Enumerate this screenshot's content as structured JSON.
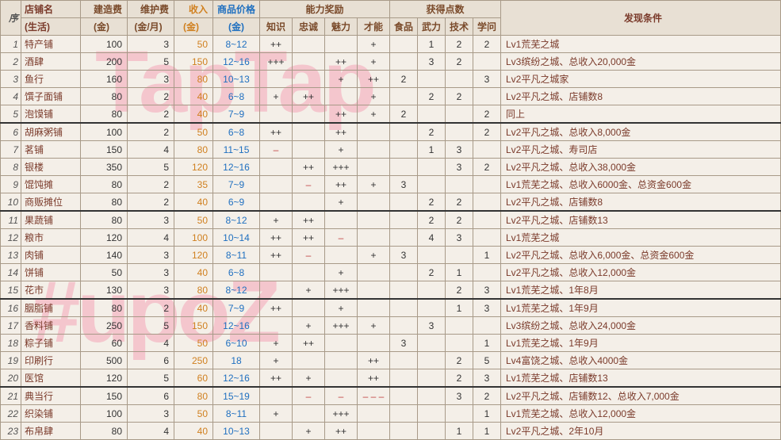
{
  "headers": {
    "idx": "序",
    "name_l1": "店铺名",
    "name_l2": "(生活)",
    "build_l1": "建造费",
    "build_l2": "(金)",
    "maint_l1": "维护费",
    "maint_l2": "(金/月)",
    "inc_l1": "收入",
    "inc_l2": "(金)",
    "price_l1": "商品价格",
    "price_l2": "(金)",
    "ability": "能力奖励",
    "points": "获得点数",
    "cond": "发现条件",
    "a1": "知识",
    "a2": "忠诚",
    "a3": "魅力",
    "a4": "才能",
    "p1": "食品",
    "p2": "武力",
    "p3": "技术",
    "p4": "学问"
  },
  "rows": [
    {
      "i": 1,
      "n": "特产铺",
      "b": 100,
      "m": 3,
      "inc": 50,
      "pr": "8~12",
      "a": [
        "++",
        "",
        "",
        "+"
      ],
      "pt": [
        "",
        "1",
        "2",
        "2"
      ],
      "c": "Lv1荒芜之城"
    },
    {
      "i": 2,
      "n": "酒肆",
      "b": 200,
      "m": 5,
      "inc": 150,
      "pr": "12~16",
      "a": [
        "+++",
        "",
        "++",
        "+"
      ],
      "pt": [
        "",
        "3",
        "2",
        ""
      ],
      "c": "Lv3缤纷之城、总收入20,000金"
    },
    {
      "i": 3,
      "n": "鱼行",
      "b": 160,
      "m": 3,
      "inc": 80,
      "pr": "10~13",
      "a": [
        "",
        "",
        "+",
        "++"
      ],
      "pt": [
        "2",
        "",
        "",
        "3"
      ],
      "c": "Lv2平凡之城家"
    },
    {
      "i": 4,
      "n": "馔子面铺",
      "b": 80,
      "m": 2,
      "inc": 40,
      "pr": "6~8",
      "a": [
        "+",
        "++",
        "",
        "+"
      ],
      "pt": [
        "",
        "2",
        "2",
        ""
      ],
      "c": "Lv2平凡之城、店铺数8"
    },
    {
      "i": 5,
      "n": "泡馍铺",
      "b": 80,
      "m": 2,
      "inc": 40,
      "pr": "7~9",
      "a": [
        "",
        "",
        "++",
        "+"
      ],
      "pt": [
        "2",
        "",
        "",
        "2"
      ],
      "c": "同上"
    },
    {
      "i": 6,
      "sep": true,
      "n": "胡麻粥铺",
      "b": 100,
      "m": 2,
      "inc": 50,
      "pr": "6~8",
      "a": [
        "++",
        "",
        "++",
        ""
      ],
      "pt": [
        "",
        "2",
        "",
        "2"
      ],
      "c": "Lv2平凡之城、总收入8,000金"
    },
    {
      "i": 7,
      "n": "茗铺",
      "b": 150,
      "m": 4,
      "inc": 80,
      "pr": "11~15",
      "a": [
        "–",
        "",
        "+",
        ""
      ],
      "pt": [
        "",
        "1",
        "3",
        ""
      ],
      "c": "Lv2平凡之城、寿司店"
    },
    {
      "i": 8,
      "n": "银楼",
      "b": 350,
      "m": 5,
      "inc": 120,
      "pr": "12~16",
      "a": [
        "",
        "++",
        "+++",
        ""
      ],
      "pt": [
        "",
        "",
        "3",
        "2"
      ],
      "c": "Lv2平凡之城、总收入38,000金"
    },
    {
      "i": 9,
      "n": "馄饨摊",
      "b": 80,
      "m": 2,
      "inc": 35,
      "pr": "7~9",
      "a": [
        "",
        "–",
        "++",
        "+"
      ],
      "pt": [
        "3",
        "",
        "",
        ""
      ],
      "c": "Lv1荒芜之城、总收入6000金、总资金600金"
    },
    {
      "i": 10,
      "n": "商贩摊位",
      "b": 80,
      "m": 2,
      "inc": 40,
      "pr": "6~9",
      "a": [
        "",
        "",
        "+",
        ""
      ],
      "pt": [
        "",
        "2",
        "2",
        ""
      ],
      "c": "Lv2平凡之城、店铺数8"
    },
    {
      "i": 11,
      "sep": true,
      "n": "果蔬铺",
      "b": 80,
      "m": 3,
      "inc": 50,
      "pr": "8~12",
      "a": [
        "+",
        "++",
        "",
        ""
      ],
      "pt": [
        "",
        "2",
        "2",
        ""
      ],
      "c": "Lv2平凡之城、店铺数13"
    },
    {
      "i": 12,
      "n": "粮市",
      "b": 120,
      "m": 4,
      "inc": 100,
      "pr": "10~14",
      "a": [
        "++",
        "++",
        "–",
        ""
      ],
      "pt": [
        "",
        "4",
        "3",
        ""
      ],
      "c": "Lv1荒芜之城"
    },
    {
      "i": 13,
      "n": "肉铺",
      "b": 140,
      "m": 3,
      "inc": 120,
      "pr": "8~11",
      "a": [
        "++",
        "–",
        "",
        "+"
      ],
      "pt": [
        "3",
        "",
        "",
        "1"
      ],
      "c": "Lv2平凡之城、总收入6,000金、总资金600金"
    },
    {
      "i": 14,
      "n": "饼铺",
      "b": 50,
      "m": 3,
      "inc": 40,
      "pr": "6~8",
      "a": [
        "",
        "",
        "+",
        ""
      ],
      "pt": [
        "",
        "2",
        "1",
        ""
      ],
      "c": "Lv2平凡之城、总收入12,000金"
    },
    {
      "i": 15,
      "n": "花市",
      "b": 130,
      "m": 3,
      "inc": 80,
      "pr": "8~12",
      "a": [
        "",
        "+",
        "+++",
        ""
      ],
      "pt": [
        "",
        "",
        "2",
        "3"
      ],
      "c": "Lv1荒芜之城、1年8月"
    },
    {
      "i": 16,
      "sep": true,
      "n": "胭脂铺",
      "b": 80,
      "m": 2,
      "inc": 40,
      "pr": "7~9",
      "a": [
        "++",
        "",
        "+",
        ""
      ],
      "pt": [
        "",
        "",
        "1",
        "3"
      ],
      "c": "Lv1荒芜之城、1年9月"
    },
    {
      "i": 17,
      "n": "香料铺",
      "b": 250,
      "m": 5,
      "inc": 150,
      "pr": "12~16",
      "a": [
        "",
        "+",
        "+++",
        "+"
      ],
      "pt": [
        "",
        "3",
        "",
        ""
      ],
      "c": "Lv3缤纷之城、总收入24,000金"
    },
    {
      "i": 18,
      "n": "粽子铺",
      "b": 60,
      "m": 4,
      "inc": 50,
      "pr": "6~10",
      "a": [
        "+",
        "++",
        "",
        ""
      ],
      "pt": [
        "3",
        "",
        "",
        "1"
      ],
      "c": "Lv1荒芜之城、1年9月"
    },
    {
      "i": 19,
      "n": "印刷行",
      "b": 500,
      "m": 6,
      "inc": 250,
      "pr": "18",
      "a": [
        "+",
        "",
        "",
        "++"
      ],
      "pt": [
        "",
        "",
        "2",
        "5"
      ],
      "c": "Lv4富饶之城、总收入4000金"
    },
    {
      "i": 20,
      "n": "医馆",
      "b": 120,
      "m": 5,
      "inc": 60,
      "pr": "12~16",
      "a": [
        "++",
        "+",
        "",
        "++"
      ],
      "pt": [
        "",
        "",
        "2",
        "3"
      ],
      "c": "Lv1荒芜之城、店铺数13"
    },
    {
      "i": 21,
      "sep": true,
      "n": "典当行",
      "b": 150,
      "m": 6,
      "inc": 80,
      "pr": "15~19",
      "a": [
        "",
        "–",
        "–",
        "– – –"
      ],
      "pt": [
        "",
        "",
        "3",
        "2"
      ],
      "c": "Lv2平凡之城、店铺数12、总收入7,000金"
    },
    {
      "i": 22,
      "n": "织染铺",
      "b": 100,
      "m": 3,
      "inc": 50,
      "pr": "8~11",
      "a": [
        "+",
        "",
        "+++",
        ""
      ],
      "pt": [
        "",
        "",
        "",
        "1"
      ],
      "c": "Lv1荒芜之城、总收入12,000金"
    },
    {
      "i": 23,
      "n": "布帛肆",
      "b": 80,
      "m": 4,
      "inc": 40,
      "pr": "10~13",
      "a": [
        "",
        "+",
        "++",
        ""
      ],
      "pt": [
        "",
        "",
        "1",
        "1"
      ],
      "c": "Lv2平凡之城、2年10月"
    }
  ]
}
